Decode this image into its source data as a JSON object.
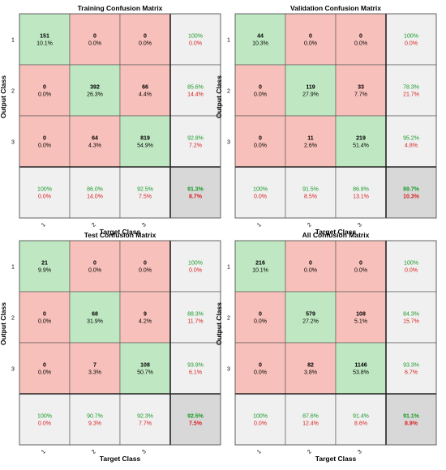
{
  "colors": {
    "correct": "#bfe8c2",
    "wrong": "#f8c0ba",
    "summary": "#f0f0f0",
    "total": "#d8d8d8",
    "green_text": "#1a9a28",
    "red_text": "#d92020",
    "grid": "#555555",
    "heavy_line": "#222222"
  },
  "chart_data": [
    {
      "type": "heatmap",
      "title": "Training Confusion Matrix",
      "xlabel": "Target Class",
      "ylabel": "Output Class",
      "x_tick_labels": [
        "1",
        "2",
        "3"
      ],
      "y_tick_labels": [
        "1",
        "2",
        "3"
      ],
      "cells": [
        [
          {
            "count": "151",
            "pct": "10.1%"
          },
          {
            "count": "0",
            "pct": "0.0%"
          },
          {
            "count": "0",
            "pct": "0.0%"
          }
        ],
        [
          {
            "count": "0",
            "pct": "0.0%"
          },
          {
            "count": "392",
            "pct": "26.3%"
          },
          {
            "count": "66",
            "pct": "4.4%"
          }
        ],
        [
          {
            "count": "0",
            "pct": "0.0%"
          },
          {
            "count": "64",
            "pct": "4.3%"
          },
          {
            "count": "819",
            "pct": "54.9%"
          }
        ]
      ],
      "row_summary": [
        {
          "correct": "100%",
          "wrong": "0.0%"
        },
        {
          "correct": "85.6%",
          "wrong": "14.4%"
        },
        {
          "correct": "92.8%",
          "wrong": "7.2%"
        }
      ],
      "col_summary": [
        {
          "correct": "100%",
          "wrong": "0.0%"
        },
        {
          "correct": "86.0%",
          "wrong": "14.0%"
        },
        {
          "correct": "92.5%",
          "wrong": "7.5%"
        }
      ],
      "overall": {
        "correct": "91.3%",
        "wrong": "8.7%"
      }
    },
    {
      "type": "heatmap",
      "title": "Validation Confusion Matrix",
      "xlabel": "Target Class",
      "ylabel": "Output Class",
      "x_tick_labels": [
        "1",
        "2",
        "3"
      ],
      "y_tick_labels": [
        "1",
        "2",
        "3"
      ],
      "cells": [
        [
          {
            "count": "44",
            "pct": "10.3%"
          },
          {
            "count": "0",
            "pct": "0.0%"
          },
          {
            "count": "0",
            "pct": "0.0%"
          }
        ],
        [
          {
            "count": "0",
            "pct": "0.0%"
          },
          {
            "count": "119",
            "pct": "27.9%"
          },
          {
            "count": "33",
            "pct": "7.7%"
          }
        ],
        [
          {
            "count": "0",
            "pct": "0.0%"
          },
          {
            "count": "11",
            "pct": "2.6%"
          },
          {
            "count": "219",
            "pct": "51.4%"
          }
        ]
      ],
      "row_summary": [
        {
          "correct": "100%",
          "wrong": "0.0%"
        },
        {
          "correct": "78.3%",
          "wrong": "21.7%"
        },
        {
          "correct": "95.2%",
          "wrong": "4.8%"
        }
      ],
      "col_summary": [
        {
          "correct": "100%",
          "wrong": "0.0%"
        },
        {
          "correct": "91.5%",
          "wrong": "8.5%"
        },
        {
          "correct": "86.9%",
          "wrong": "13.1%"
        }
      ],
      "overall": {
        "correct": "89.7%",
        "wrong": "10.3%"
      }
    },
    {
      "type": "heatmap",
      "title": "Test Confusion Matrix",
      "xlabel": "Target Class",
      "ylabel": "Output Class",
      "x_tick_labels": [
        "1",
        "2",
        "3"
      ],
      "y_tick_labels": [
        "1",
        "2",
        "3"
      ],
      "cells": [
        [
          {
            "count": "21",
            "pct": "9.9%"
          },
          {
            "count": "0",
            "pct": "0.0%"
          },
          {
            "count": "0",
            "pct": "0.0%"
          }
        ],
        [
          {
            "count": "0",
            "pct": "0.0%"
          },
          {
            "count": "68",
            "pct": "31.9%"
          },
          {
            "count": "9",
            "pct": "4.2%"
          }
        ],
        [
          {
            "count": "0",
            "pct": "0.0%"
          },
          {
            "count": "7",
            "pct": "3.3%"
          },
          {
            "count": "108",
            "pct": "50.7%"
          }
        ]
      ],
      "row_summary": [
        {
          "correct": "100%",
          "wrong": "0.0%"
        },
        {
          "correct": "88.3%",
          "wrong": "11.7%"
        },
        {
          "correct": "93.9%",
          "wrong": "6.1%"
        }
      ],
      "col_summary": [
        {
          "correct": "100%",
          "wrong": "0.0%"
        },
        {
          "correct": "90.7%",
          "wrong": "9.3%"
        },
        {
          "correct": "92.3%",
          "wrong": "7.7%"
        }
      ],
      "overall": {
        "correct": "92.5%",
        "wrong": "7.5%"
      }
    },
    {
      "type": "heatmap",
      "title": "All Confusion Matrix",
      "xlabel": "Target Class",
      "ylabel": "Output Class",
      "x_tick_labels": [
        "1",
        "2",
        "3"
      ],
      "y_tick_labels": [
        "1",
        "2",
        "3"
      ],
      "cells": [
        [
          {
            "count": "216",
            "pct": "10.1%"
          },
          {
            "count": "0",
            "pct": "0.0%"
          },
          {
            "count": "0",
            "pct": "0.0%"
          }
        ],
        [
          {
            "count": "0",
            "pct": "0.0%"
          },
          {
            "count": "579",
            "pct": "27.2%"
          },
          {
            "count": "108",
            "pct": "5.1%"
          }
        ],
        [
          {
            "count": "0",
            "pct": "0.0%"
          },
          {
            "count": "82",
            "pct": "3.8%"
          },
          {
            "count": "1146",
            "pct": "53.8%"
          }
        ]
      ],
      "row_summary": [
        {
          "correct": "100%",
          "wrong": "0.0%"
        },
        {
          "correct": "84.3%",
          "wrong": "15.7%"
        },
        {
          "correct": "93.3%",
          "wrong": "6.7%"
        }
      ],
      "col_summary": [
        {
          "correct": "100%",
          "wrong": "0.0%"
        },
        {
          "correct": "87.6%",
          "wrong": "12.4%"
        },
        {
          "correct": "91.4%",
          "wrong": "8.6%"
        }
      ],
      "overall": {
        "correct": "91.1%",
        "wrong": "8.9%"
      }
    }
  ]
}
